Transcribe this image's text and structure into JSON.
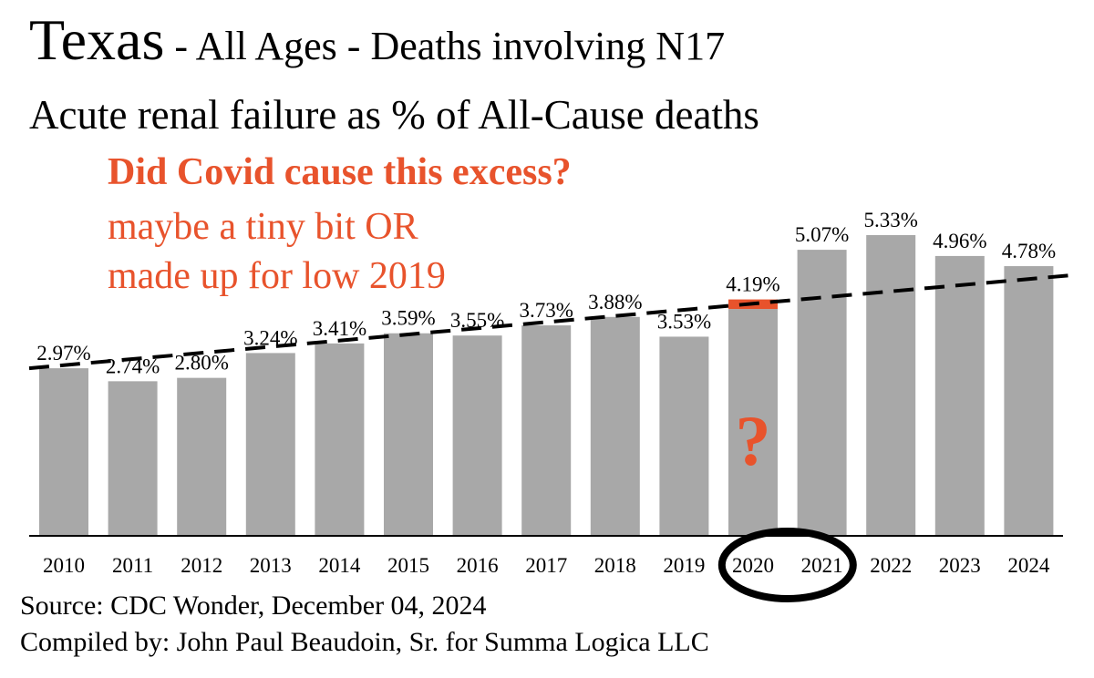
{
  "title": {
    "main": "Texas",
    "rest": " - All Ages - Deaths involving N17"
  },
  "subtitle": "Acute renal failure as % of All-Cause deaths",
  "annotation": {
    "question": "Did Covid cause this excess?",
    "line1": "maybe a tiny bit OR",
    "line2": "made up for low 2019",
    "mark": "?"
  },
  "source": "Source:  CDC Wonder, December 04, 2024",
  "compiled_by": "Compiled by:  John Paul Beaudoin, Sr. for Summa Logica LLC",
  "colors": {
    "bar": "#a8a8a8",
    "highlight": "#e8532c",
    "trend": "#000000",
    "circle": "#000000"
  },
  "chart_data": {
    "type": "bar",
    "categories": [
      "2010",
      "2011",
      "2012",
      "2013",
      "2014",
      "2015",
      "2016",
      "2017",
      "2018",
      "2019",
      "2020",
      "2021",
      "2022",
      "2023",
      "2024"
    ],
    "values": [
      2.97,
      2.74,
      2.8,
      3.24,
      3.41,
      3.59,
      3.55,
      3.73,
      3.88,
      3.53,
      4.19,
      5.07,
      5.33,
      4.96,
      4.78
    ],
    "data_labels": [
      "2.97%",
      "2.74%",
      "2.80%",
      "3.24%",
      "3.41%",
      "3.59%",
      "3.55%",
      "3.73%",
      "3.88%",
      "3.53%",
      "4.19%",
      "5.07%",
      "5.33%",
      "4.96%",
      "4.78%"
    ],
    "trend_baseline_2020": 4.02,
    "trendline": {
      "style": "dashed",
      "start": 2.97,
      "end": 4.62
    },
    "highlight_category": "2020",
    "circled_categories": [
      "2020",
      "2021"
    ],
    "ylim": [
      0,
      5.7
    ],
    "grid": false,
    "legend": "none"
  }
}
